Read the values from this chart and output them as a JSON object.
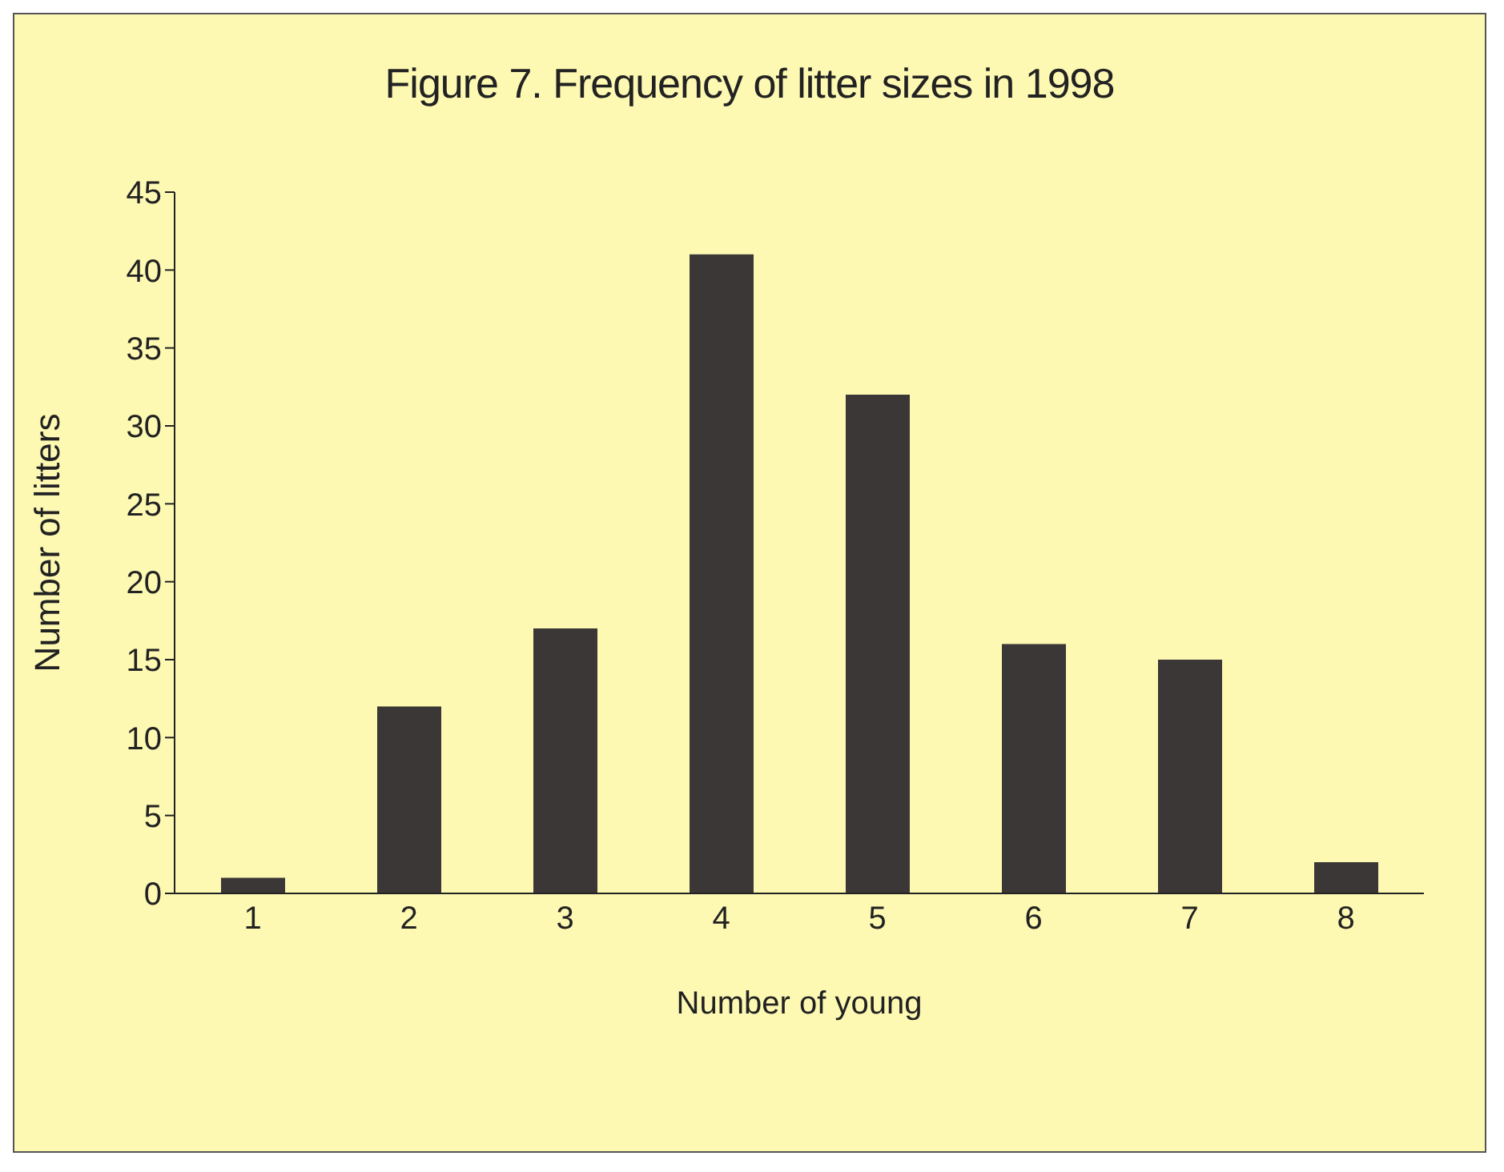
{
  "chart_data": {
    "type": "bar",
    "title": "Figure 7. Frequency of litter sizes in 1998",
    "xlabel": "Number of young",
    "ylabel": "Number of litters",
    "categories": [
      "1",
      "2",
      "3",
      "4",
      "5",
      "6",
      "7",
      "8"
    ],
    "values": [
      1,
      12,
      17,
      41,
      32,
      16,
      15,
      2
    ],
    "color": "#3b3737",
    "ylim": [
      0,
      45
    ],
    "yticks": [
      0,
      5,
      10,
      15,
      20,
      25,
      30,
      35,
      40,
      45
    ],
    "grid": false
  }
}
